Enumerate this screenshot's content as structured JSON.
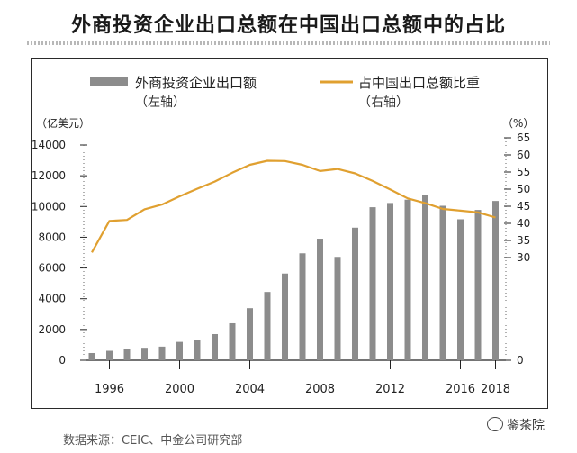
{
  "title": "外商投资企业出口总额在中国出口总额中的占比",
  "source": "数据来源：CEIC、中金公司研究部",
  "watermark": "鉴茶院",
  "chart_data": {
    "type": "bar",
    "legend": {
      "bar_label": "外商投资企业出口额",
      "bar_sub": "（左轴）",
      "line_label": "占中国出口总额比重",
      "line_sub": "（右轴）"
    },
    "y_left_unit": "（亿美元）",
    "y_right_unit": "（%）",
    "x_ticks": [
      "1996",
      "2000",
      "2004",
      "2008",
      "2012",
      "2016",
      "2018"
    ],
    "years": [
      1995,
      1996,
      1997,
      1998,
      1999,
      2000,
      2001,
      2002,
      2003,
      2004,
      2005,
      2006,
      2007,
      2008,
      2009,
      2010,
      2011,
      2012,
      2013,
      2014,
      2015,
      2016,
      2017,
      2018
    ],
    "export_values": [
      469,
      615,
      749,
      810,
      886,
      1194,
      1332,
      1699,
      2403,
      3386,
      4442,
      5638,
      6955,
      7906,
      6722,
      8623,
      9953,
      10227,
      10443,
      10747,
      10047,
      9168,
      9776,
      10360
    ],
    "share_values": [
      31.5,
      40.7,
      41.0,
      44.1,
      45.5,
      47.9,
      50.1,
      52.2,
      54.8,
      57.1,
      58.3,
      58.2,
      57.1,
      55.3,
      55.9,
      54.6,
      52.4,
      49.9,
      47.3,
      45.9,
      44.2,
      43.7,
      43.2,
      41.7
    ],
    "ylim_left": [
      0,
      14000
    ],
    "ylim_right": [
      0,
      65
    ],
    "left_ticks": [
      "0",
      "2000",
      "4000",
      "6000",
      "8000",
      "10000",
      "12000",
      "14000"
    ],
    "right_ticks": [
      "0",
      "30",
      "35",
      "40",
      "45",
      "50",
      "55",
      "60",
      "65"
    ],
    "colors": {
      "bar": "#8c8c8c",
      "line": "#e0a030",
      "axis": "#222222"
    }
  }
}
